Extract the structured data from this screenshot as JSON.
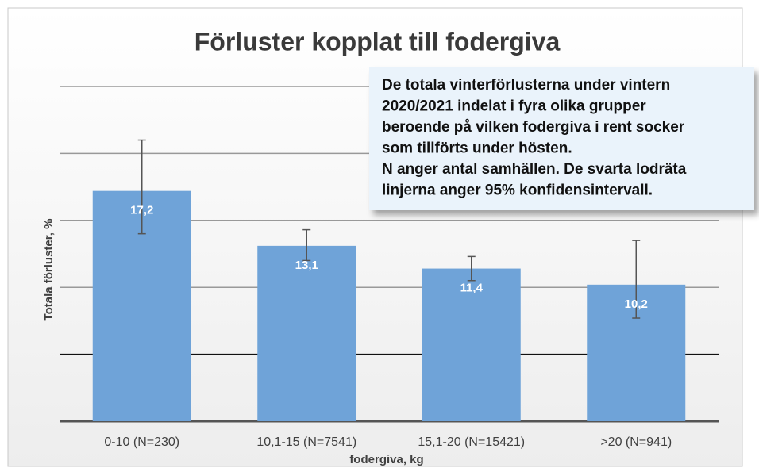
{
  "chart_data": {
    "type": "bar",
    "title": "Förluster kopplat till fodergiva",
    "xlabel": "fodergiva, kg",
    "ylabel": "Totala förluster, %",
    "categories": [
      "0-10 (N=230)",
      "10,1-15 (N=7541)",
      "15,1-20 (N=15421)",
      ">20 (N=941)"
    ],
    "values": [
      17.2,
      13.1,
      11.4,
      10.2
    ],
    "value_labels": [
      "17,2",
      "13,1",
      "11,4",
      "10,2"
    ],
    "ci_low": [
      14.0,
      12.0,
      10.5,
      7.7
    ],
    "ci_high": [
      21.0,
      14.3,
      12.3,
      13.5
    ],
    "color": "#6fa3d8",
    "ylim": [
      0,
      25
    ],
    "yticks": [
      0,
      5,
      10,
      15,
      20,
      25
    ],
    "grid": true,
    "annotation": [
      "De totala vinterförlusterna under vintern",
      "2020/2021 indelat i fyra olika grupper",
      "beroende på vilken fodergiva i rent socker",
      "som tillförts under hösten.",
      "N anger antal samhällen. De svarta lodräta",
      "linjerna anger 95% konfidensintervall."
    ]
  }
}
